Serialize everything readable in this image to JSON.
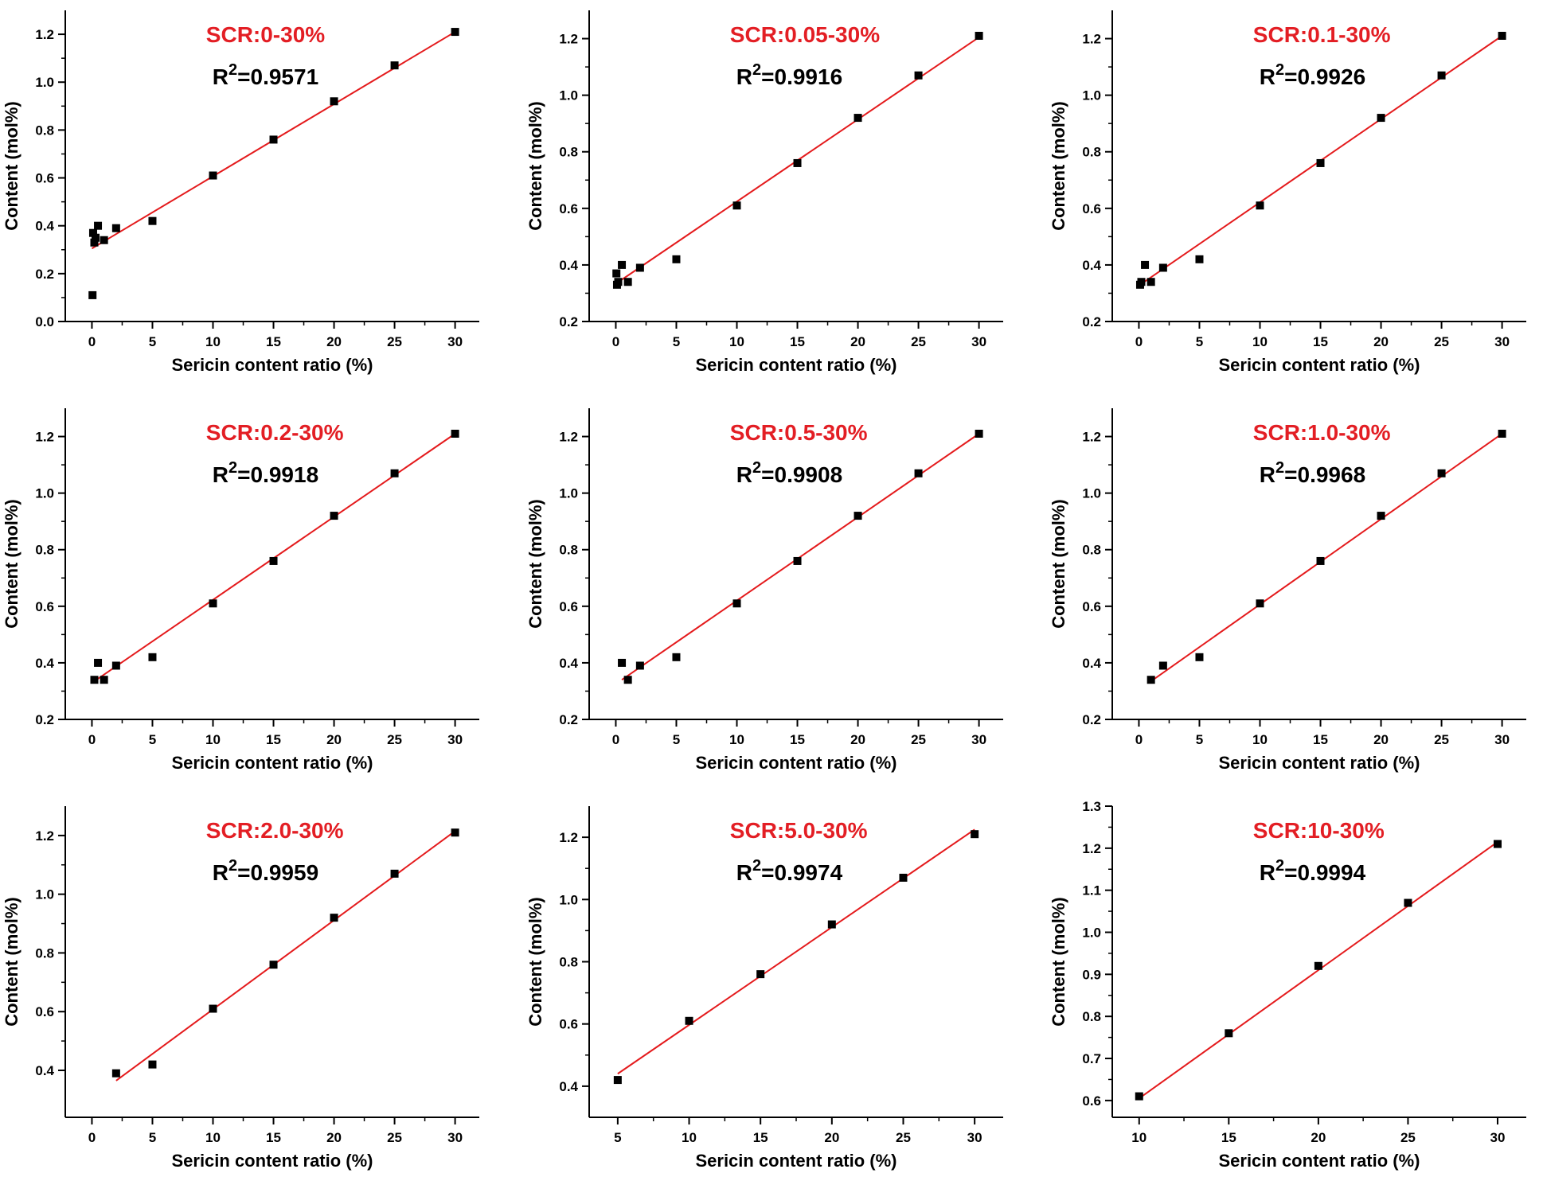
{
  "figure": {
    "xlabel": "Sericin content ratio (%)",
    "ylabel": "Content (mol%)"
  },
  "colors": {
    "fit": "#e41a1c",
    "title": "#e31e24",
    "marker": "#000000",
    "axis": "#000000"
  },
  "chart_data": [
    {
      "type": "scatter",
      "title": "SCR:0-30%",
      "r2_label": "R",
      "r2_sup": "2",
      "r2_value": "=0.9571",
      "xlabel": "Sericin content ratio (%)",
      "ylabel": "Content (mol%)",
      "xlim": [
        -2.2,
        32
      ],
      "ylim": [
        0,
        1.3
      ],
      "xticks": [
        0,
        5,
        10,
        15,
        20,
        25,
        30
      ],
      "yticks": [
        0.0,
        0.2,
        0.4,
        0.6,
        0.8,
        1.0,
        1.2
      ],
      "ytick_labels": [
        "0.0",
        "0.2",
        "0.4",
        "0.6",
        "0.8",
        "1.0",
        "1.2"
      ],
      "points": [
        [
          0.05,
          0.11
        ],
        [
          0.1,
          0.37
        ],
        [
          0.2,
          0.33
        ],
        [
          0.3,
          0.35
        ],
        [
          0.5,
          0.4
        ],
        [
          1,
          0.34
        ],
        [
          2,
          0.39
        ],
        [
          5,
          0.42
        ],
        [
          10,
          0.61
        ],
        [
          15,
          0.76
        ],
        [
          20,
          0.92
        ],
        [
          25,
          1.07
        ],
        [
          30,
          1.21
        ]
      ],
      "fit": {
        "x": [
          0,
          30
        ],
        "y": [
          0.305,
          1.21
        ]
      }
    },
    {
      "type": "scatter",
      "title": "SCR:0.05-30%",
      "r2_label": "R",
      "r2_sup": "2",
      "r2_value": "=0.9916",
      "xlabel": "Sericin content ratio (%)",
      "ylabel": "Content (mol%)",
      "xlim": [
        -2.2,
        32
      ],
      "ylim": [
        0.2,
        1.3
      ],
      "xticks": [
        0,
        5,
        10,
        15,
        20,
        25,
        30
      ],
      "yticks": [
        0.2,
        0.4,
        0.6,
        0.8,
        1.0,
        1.2
      ],
      "ytick_labels": [
        "0.2",
        "0.4",
        "0.6",
        "0.8",
        "1.0",
        "1.2"
      ],
      "points": [
        [
          0.05,
          0.37
        ],
        [
          0.1,
          0.33
        ],
        [
          0.2,
          0.34
        ],
        [
          0.5,
          0.4
        ],
        [
          1,
          0.34
        ],
        [
          2,
          0.39
        ],
        [
          5,
          0.42
        ],
        [
          10,
          0.61
        ],
        [
          15,
          0.76
        ],
        [
          20,
          0.92
        ],
        [
          25,
          1.07
        ],
        [
          30,
          1.21
        ]
      ],
      "fit": {
        "x": [
          0.05,
          30
        ],
        "y": [
          0.335,
          1.205
        ]
      }
    },
    {
      "type": "scatter",
      "title": "SCR:0.1-30%",
      "r2_label": "R",
      "r2_sup": "2",
      "r2_value": "=0.9926",
      "xlabel": "Sericin content ratio (%)",
      "ylabel": "Content (mol%)",
      "xlim": [
        -2.2,
        32
      ],
      "ylim": [
        0.2,
        1.3
      ],
      "xticks": [
        0,
        5,
        10,
        15,
        20,
        25,
        30
      ],
      "yticks": [
        0.2,
        0.4,
        0.6,
        0.8,
        1.0,
        1.2
      ],
      "ytick_labels": [
        "0.2",
        "0.4",
        "0.6",
        "0.8",
        "1.0",
        "1.2"
      ],
      "points": [
        [
          0.1,
          0.33
        ],
        [
          0.2,
          0.34
        ],
        [
          0.5,
          0.4
        ],
        [
          1,
          0.34
        ],
        [
          2,
          0.39
        ],
        [
          5,
          0.42
        ],
        [
          10,
          0.61
        ],
        [
          15,
          0.76
        ],
        [
          20,
          0.92
        ],
        [
          25,
          1.07
        ],
        [
          30,
          1.21
        ]
      ],
      "fit": {
        "x": [
          0.1,
          30
        ],
        "y": [
          0.33,
          1.21
        ]
      }
    },
    {
      "type": "scatter",
      "title": "SCR:0.2-30%",
      "r2_label": "R",
      "r2_sup": "2",
      "r2_value": "=0.9918",
      "xlabel": "Sericin content ratio (%)",
      "ylabel": "Content (mol%)",
      "xlim": [
        -2.2,
        32
      ],
      "ylim": [
        0.2,
        1.3
      ],
      "xticks": [
        0,
        5,
        10,
        15,
        20,
        25,
        30
      ],
      "yticks": [
        0.2,
        0.4,
        0.6,
        0.8,
        1.0,
        1.2
      ],
      "ytick_labels": [
        "0.2",
        "0.4",
        "0.6",
        "0.8",
        "1.0",
        "1.2"
      ],
      "points": [
        [
          0.2,
          0.34
        ],
        [
          0.5,
          0.4
        ],
        [
          1,
          0.34
        ],
        [
          2,
          0.39
        ],
        [
          5,
          0.42
        ],
        [
          10,
          0.61
        ],
        [
          15,
          0.76
        ],
        [
          20,
          0.92
        ],
        [
          25,
          1.07
        ],
        [
          30,
          1.21
        ]
      ],
      "fit": {
        "x": [
          0.2,
          30
        ],
        "y": [
          0.335,
          1.21
        ]
      }
    },
    {
      "type": "scatter",
      "title": "SCR:0.5-30%",
      "r2_label": "R",
      "r2_sup": "2",
      "r2_value": "=0.9908",
      "xlabel": "Sericin content ratio (%)",
      "ylabel": "Content (mol%)",
      "xlim": [
        -2.2,
        32
      ],
      "ylim": [
        0.2,
        1.3
      ],
      "xticks": [
        0,
        5,
        10,
        15,
        20,
        25,
        30
      ],
      "yticks": [
        0.2,
        0.4,
        0.6,
        0.8,
        1.0,
        1.2
      ],
      "ytick_labels": [
        "0.2",
        "0.4",
        "0.6",
        "0.8",
        "1.0",
        "1.2"
      ],
      "points": [
        [
          0.5,
          0.4
        ],
        [
          1,
          0.34
        ],
        [
          2,
          0.39
        ],
        [
          5,
          0.42
        ],
        [
          10,
          0.61
        ],
        [
          15,
          0.76
        ],
        [
          20,
          0.92
        ],
        [
          25,
          1.07
        ],
        [
          30,
          1.21
        ]
      ],
      "fit": {
        "x": [
          0.5,
          30
        ],
        "y": [
          0.34,
          1.21
        ]
      }
    },
    {
      "type": "scatter",
      "title": "SCR:1.0-30%",
      "r2_label": "R",
      "r2_sup": "2",
      "r2_value": "=0.9968",
      "xlabel": "Sericin content ratio (%)",
      "ylabel": "Content (mol%)",
      "xlim": [
        -2.2,
        32
      ],
      "ylim": [
        0.2,
        1.3
      ],
      "xticks": [
        0,
        5,
        10,
        15,
        20,
        25,
        30
      ],
      "yticks": [
        0.2,
        0.4,
        0.6,
        0.8,
        1.0,
        1.2
      ],
      "ytick_labels": [
        "0.2",
        "0.4",
        "0.6",
        "0.8",
        "1.0",
        "1.2"
      ],
      "points": [
        [
          1,
          0.34
        ],
        [
          2,
          0.39
        ],
        [
          5,
          0.42
        ],
        [
          10,
          0.61
        ],
        [
          15,
          0.76
        ],
        [
          20,
          0.92
        ],
        [
          25,
          1.07
        ],
        [
          30,
          1.21
        ]
      ],
      "fit": {
        "x": [
          1,
          30
        ],
        "y": [
          0.335,
          1.21
        ]
      }
    },
    {
      "type": "scatter",
      "title": "SCR:2.0-30%",
      "r2_label": "R",
      "r2_sup": "2",
      "r2_value": "=0.9959",
      "xlabel": "Sericin content ratio (%)",
      "ylabel": "Content (mol%)",
      "xlim": [
        -2.2,
        32
      ],
      "ylim": [
        0.24,
        1.3
      ],
      "xticks": [
        0,
        5,
        10,
        15,
        20,
        25,
        30
      ],
      "yticks": [
        0.4,
        0.6,
        0.8,
        1.0,
        1.2
      ],
      "ytick_labels": [
        "0.4",
        "0.6",
        "0.8",
        "1.0",
        "1.2"
      ],
      "points": [
        [
          2,
          0.39
        ],
        [
          5,
          0.42
        ],
        [
          10,
          0.61
        ],
        [
          15,
          0.76
        ],
        [
          20,
          0.92
        ],
        [
          25,
          1.07
        ],
        [
          30,
          1.21
        ]
      ],
      "fit": {
        "x": [
          2,
          30
        ],
        "y": [
          0.365,
          1.215
        ]
      }
    },
    {
      "type": "scatter",
      "title": "SCR:5.0-30%",
      "r2_label": "R",
      "r2_sup": "2",
      "r2_value": "=0.9974",
      "xlabel": "Sericin content ratio (%)",
      "ylabel": "Content (mol%)",
      "xlim": [
        3,
        32
      ],
      "ylim": [
        0.3,
        1.3
      ],
      "xticks": [
        5,
        10,
        15,
        20,
        25,
        30
      ],
      "yticks": [
        0.4,
        0.6,
        0.8,
        1.0,
        1.2
      ],
      "ytick_labels": [
        "0.4",
        "0.6",
        "0.8",
        "1.0",
        "1.2"
      ],
      "points": [
        [
          5,
          0.42
        ],
        [
          10,
          0.61
        ],
        [
          15,
          0.76
        ],
        [
          20,
          0.92
        ],
        [
          25,
          1.07
        ],
        [
          30,
          1.21
        ]
      ],
      "fit": {
        "x": [
          5,
          30
        ],
        "y": [
          0.44,
          1.225
        ]
      }
    },
    {
      "type": "scatter",
      "title": "SCR:10-30%",
      "r2_label": "R",
      "r2_sup": "2",
      "r2_value": "=0.9994",
      "xlabel": "Sericin content ratio (%)",
      "ylabel": "Content (mol%)",
      "xlim": [
        8.5,
        31.6
      ],
      "ylim": [
        0.56,
        1.3
      ],
      "xticks": [
        10,
        15,
        20,
        25,
        30
      ],
      "yticks": [
        0.6,
        0.7,
        0.8,
        0.9,
        1.0,
        1.1,
        1.2,
        1.3
      ],
      "ytick_labels": [
        "0.6",
        "0.7",
        "0.8",
        "0.9",
        "1.0",
        "1.1",
        "1.2",
        "1.3"
      ],
      "points": [
        [
          10,
          0.61
        ],
        [
          15,
          0.76
        ],
        [
          20,
          0.92
        ],
        [
          25,
          1.07
        ],
        [
          30,
          1.21
        ]
      ],
      "fit": {
        "x": [
          10,
          30
        ],
        "y": [
          0.605,
          1.215
        ]
      }
    }
  ]
}
